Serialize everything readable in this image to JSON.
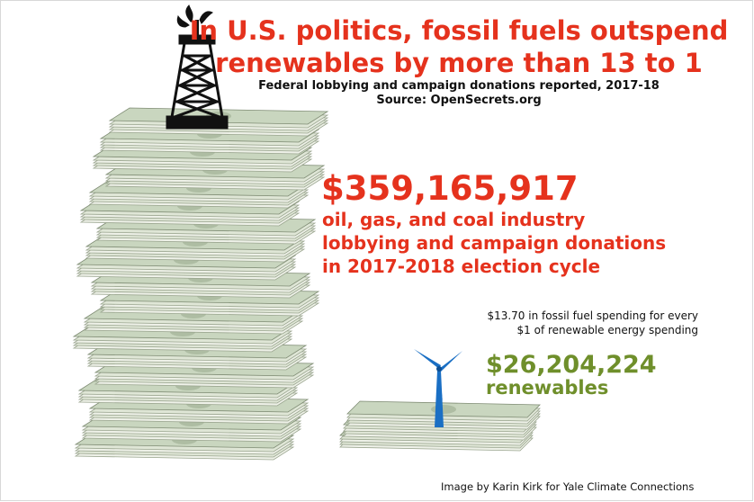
{
  "header": {
    "title": [
      "In U.S. politics, fossil fuels outspend",
      "renewables by more than 13 to 1"
    ],
    "subtitle": "Federal lobbying and campaign donations reported, 2017-18",
    "source": "Source: OpenSecrets.org"
  },
  "fossil": {
    "amount": "$359,165,917",
    "description": [
      "oil, gas, and coal industry",
      "lobbying and campaign donations",
      "in 2017-2018 election cycle"
    ]
  },
  "ratio_note": [
    "$13.70 in fossil fuel spending for every",
    "$1 of renewable energy spending"
  ],
  "renewables": {
    "amount": "$26,204,224",
    "label": "renewables"
  },
  "footer": {
    "credit": "Image by Karin Kirk for Yale Climate Connections"
  }
}
